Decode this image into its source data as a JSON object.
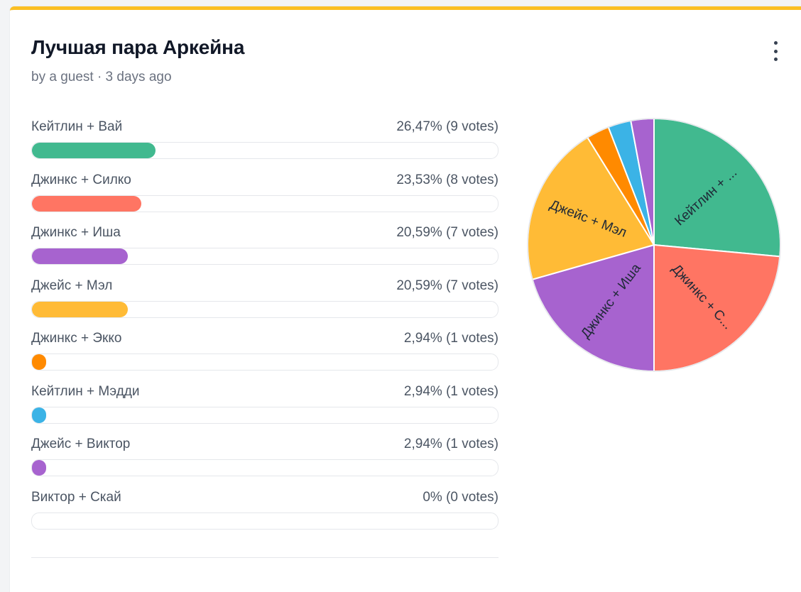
{
  "poll": {
    "title": "Лучшая пара Аркейна",
    "meta": "by a guest · 3 days ago"
  },
  "menu": {
    "icon": "more-vertical-icon"
  },
  "accent_color": "#fbbf24",
  "options": [
    {
      "label": "Кейтлин + Вай",
      "percent": 26.47,
      "percent_text": "26,47% (9 votes)",
      "votes": 9,
      "color": "#41b98f",
      "pie_label": "Кейтлин + ..."
    },
    {
      "label": "Джинкс + Силко",
      "percent": 23.53,
      "percent_text": "23,53% (8 votes)",
      "votes": 8,
      "color": "#ff7563",
      "pie_label": "Джинкс + С..."
    },
    {
      "label": "Джинкс + Иша",
      "percent": 20.59,
      "percent_text": "20,59% (7 votes)",
      "votes": 7,
      "color": "#a763cf",
      "pie_label": "Джинкс + Иша"
    },
    {
      "label": "Джейс + Мэл",
      "percent": 20.59,
      "percent_text": "20,59% (7 votes)",
      "votes": 7,
      "color": "#ffbb36",
      "pie_label": "Джейс + Мэл"
    },
    {
      "label": "Джинкс + Экко",
      "percent": 2.94,
      "percent_text": "2,94% (1 votes)",
      "votes": 1,
      "color": "#ff8a00",
      "pie_label": ""
    },
    {
      "label": "Кейтлин + Мэдди",
      "percent": 2.94,
      "percent_text": "2,94% (1 votes)",
      "votes": 1,
      "color": "#3bb3e6",
      "pie_label": ""
    },
    {
      "label": "Джейс + Виктор",
      "percent": 2.94,
      "percent_text": "2,94% (1 votes)",
      "votes": 1,
      "color": "#a763cf",
      "pie_label": ""
    },
    {
      "label": "Виктор + Скай",
      "percent": 0,
      "percent_text": "0% (0 votes)",
      "votes": 0,
      "color": "#9ca3af",
      "pie_label": ""
    }
  ],
  "chart_data": {
    "type": "pie",
    "categories": [
      "Кейтлин + Вай",
      "Джинкс + Силко",
      "Джинкс + Иша",
      "Джейс + Мэл",
      "Джинкс + Экко",
      "Кейтлин + Мэдди",
      "Джейс + Виктор",
      "Виктор + Скай"
    ],
    "values": [
      9,
      8,
      7,
      7,
      1,
      1,
      1,
      0
    ],
    "slice_labels": [
      "Кейтлин + ...",
      "Джинкс + С...",
      "Джинкс + Иша",
      "Джейс + Мэл",
      "",
      "",
      "",
      ""
    ],
    "colors": [
      "#41b98f",
      "#ff7563",
      "#a763cf",
      "#ffbb36",
      "#ff8a00",
      "#3bb3e6",
      "#a763cf",
      "#9ca3af"
    ],
    "title": "",
    "legend": "none"
  }
}
